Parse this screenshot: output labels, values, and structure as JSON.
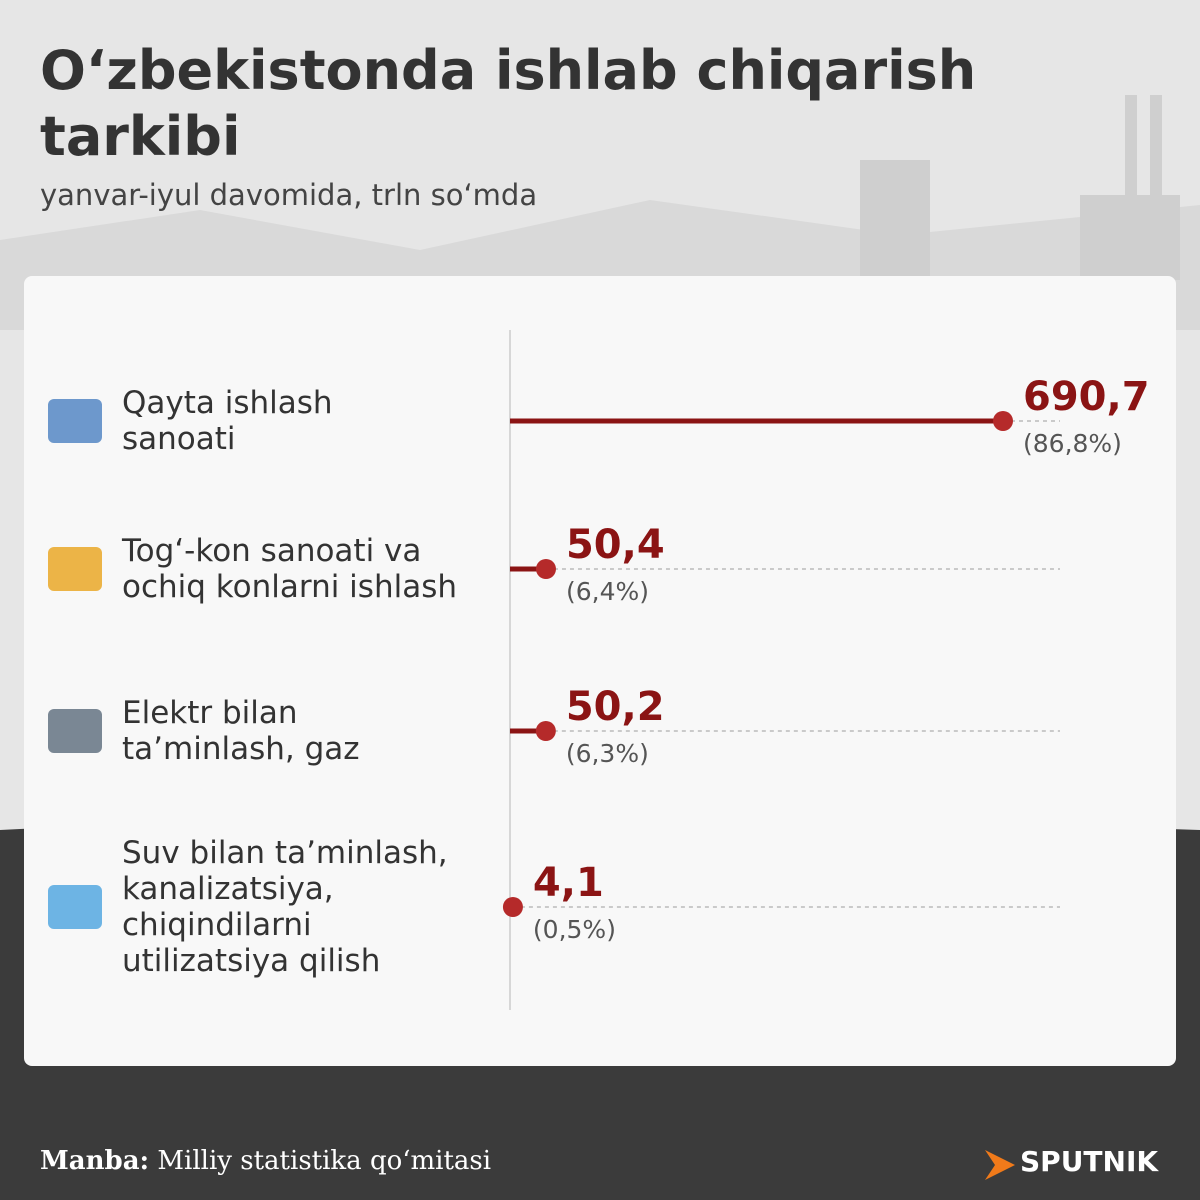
{
  "chart_data": {
    "type": "lollipop",
    "title": "O‘zbekistonda ishlab chiqarish tarkibi",
    "subtitle": "yanvar-iyul davomida, trln so‘mda",
    "categories": [
      "Qayta ishlash\nsanoati",
      "Tog‘-kon sanoati va\nochiq konlarni ishlash",
      "Elektr bilan\nta’minlash, gaz",
      "Suv bilan ta’minlash,\nkanalizatsiya,\nchiqindilarni\nutilizatsiya qilish"
    ],
    "values": [
      690.7,
      50.4,
      50.2,
      4.1
    ],
    "value_labels": [
      "690,7",
      "50,4",
      "50,2",
      "4,1"
    ],
    "shares": [
      86.8,
      6.4,
      6.3,
      0.5
    ],
    "share_labels": [
      "(86,8%)",
      "(6,4%)",
      "(6,3%)",
      "(0,5%)"
    ],
    "color": "#8b1414",
    "source_label": "Manba:",
    "source": "Milliy statistika qo‘mitasi",
    "logo": "SPUTNIK"
  }
}
